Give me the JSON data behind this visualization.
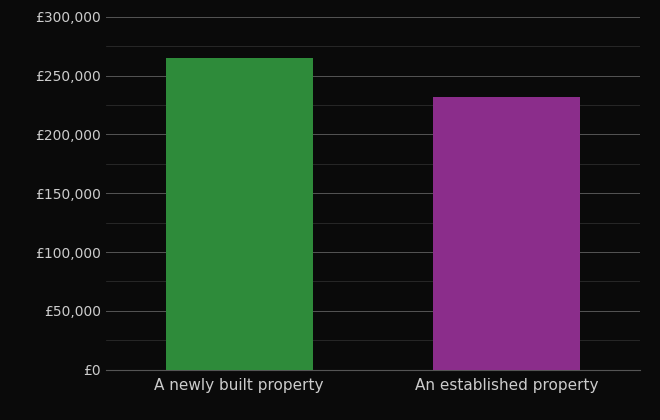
{
  "categories": [
    "A newly built property",
    "An established property"
  ],
  "values": [
    265000,
    232000
  ],
  "bar_colors": [
    "#2e8b3a",
    "#8b2d8b"
  ],
  "background_color": "#0a0a0a",
  "text_color": "#cccccc",
  "grid_color": "#555555",
  "minor_grid_color": "#333333",
  "ylim": [
    0,
    300000
  ],
  "yticks_major": [
    0,
    50000,
    100000,
    150000,
    200000,
    250000,
    300000
  ],
  "bar_width": 0.55,
  "xlabel_fontsize": 11,
  "ytick_fontsize": 10
}
